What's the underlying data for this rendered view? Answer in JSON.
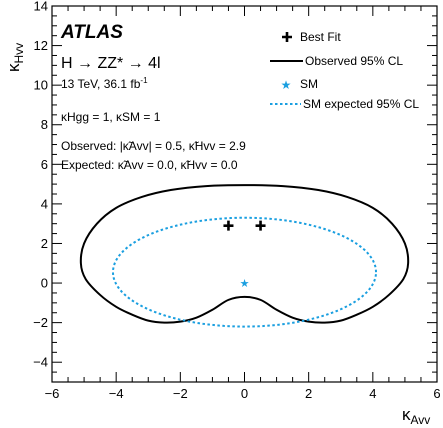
{
  "chart_data": {
    "type": "scatter",
    "title": "",
    "xlabel_main": "κ",
    "xlabel_sub": "Avv",
    "ylabel_main": "κ",
    "ylabel_sub": "Hvv",
    "xlim": [
      -6,
      6
    ],
    "ylim": [
      -5,
      14
    ],
    "x_ticks": [
      -6,
      -4,
      -2,
      0,
      2,
      4,
      6
    ],
    "y_ticks": [
      -4,
      -2,
      0,
      2,
      4,
      6,
      8,
      10,
      12,
      14
    ],
    "grid": false,
    "annotations": {
      "experiment": "ATLAS",
      "process": "H → ZZ* → 4l",
      "energy_lumi_main": "13 TeV, 36.1 fb",
      "energy_lumi_sup": "-1",
      "fixed_params": "κHgg = 1, κSM = 1",
      "observed": "Observed: |κ̃Avv| = 0.5, κ̃Hvv = 2.9",
      "expected": "Expected: κ̃Avv = 0.0, κ̃Hvv = 0.0"
    },
    "legend": {
      "placement": "top-right",
      "entries": [
        {
          "label": "Best Fit",
          "marker": "plus",
          "color": "#000000"
        },
        {
          "label": "Observed 95% CL",
          "marker": "solid-line",
          "color": "#000000"
        },
        {
          "label": "SM",
          "marker": "star",
          "color": "#1a9fe0"
        },
        {
          "label": "SM expected 95% CL",
          "marker": "dotted-line",
          "color": "#1a9fe0"
        }
      ]
    },
    "series": [
      {
        "name": "Best Fit",
        "kind": "points",
        "marker": "plus",
        "color": "#000000",
        "points": [
          [
            -0.5,
            2.9
          ],
          [
            0.5,
            2.9
          ]
        ]
      },
      {
        "name": "SM",
        "kind": "points",
        "marker": "star",
        "color": "#1a9fe0",
        "points": [
          [
            0.0,
            0.0
          ]
        ]
      },
      {
        "name": "Observed 95% CL",
        "kind": "contour",
        "style": "solid",
        "color": "#000000",
        "points": [
          [
            0.0,
            -0.7
          ],
          [
            -0.5,
            -0.85
          ],
          [
            -1.0,
            -1.35
          ],
          [
            -1.5,
            -1.75
          ],
          [
            -2.0,
            -1.95
          ],
          [
            -2.5,
            -2.0
          ],
          [
            -3.0,
            -1.9
          ],
          [
            -3.5,
            -1.6
          ],
          [
            -4.0,
            -1.2
          ],
          [
            -4.5,
            -0.6
          ],
          [
            -4.95,
            0.2
          ],
          [
            -5.1,
            1.0
          ],
          [
            -5.0,
            2.0
          ],
          [
            -4.6,
            3.0
          ],
          [
            -4.0,
            3.8
          ],
          [
            -3.2,
            4.35
          ],
          [
            -2.3,
            4.7
          ],
          [
            -1.2,
            4.9
          ],
          [
            0.0,
            4.95
          ],
          [
            1.2,
            4.9
          ],
          [
            2.3,
            4.7
          ],
          [
            3.2,
            4.35
          ],
          [
            4.0,
            3.8
          ],
          [
            4.6,
            3.0
          ],
          [
            5.0,
            2.0
          ],
          [
            5.1,
            1.0
          ],
          [
            4.95,
            0.2
          ],
          [
            4.5,
            -0.6
          ],
          [
            4.0,
            -1.2
          ],
          [
            3.5,
            -1.6
          ],
          [
            3.0,
            -1.9
          ],
          [
            2.5,
            -2.0
          ],
          [
            2.0,
            -1.95
          ],
          [
            1.5,
            -1.75
          ],
          [
            1.0,
            -1.35
          ],
          [
            0.5,
            -0.85
          ],
          [
            0.0,
            -0.7
          ]
        ]
      },
      {
        "name": "SM expected 95% CL",
        "kind": "contour",
        "style": "dotted",
        "color": "#1a9fe0",
        "ellipse": {
          "center": [
            0.0,
            0.55
          ],
          "semi_x": 4.1,
          "semi_y": 2.75
        }
      }
    ]
  }
}
